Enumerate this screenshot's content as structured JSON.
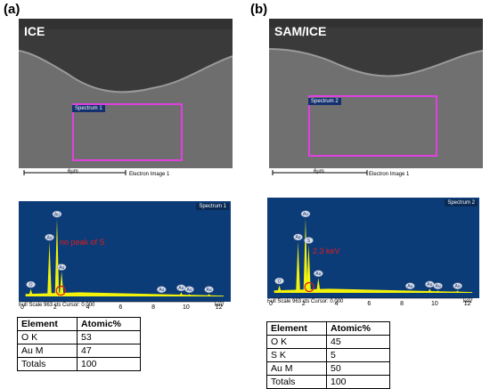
{
  "panels": [
    {
      "letter": "(a)",
      "sem_label": "ICE",
      "roi_label": "Spectrum 1",
      "scale_text": "6µm",
      "image_label": "Electron Image 1",
      "eds": {
        "spectrum_label": "Spectrum 1",
        "footer": "Full Scale 963 cts Cursor: 0.000",
        "x_unit": "keV",
        "ticks": [
          "0",
          "2",
          "4",
          "6",
          "8",
          "10",
          "12"
        ],
        "annotation": "no peak of S",
        "peaks": [
          {
            "label": "O",
            "x": 0.52,
            "y": 0.09
          },
          {
            "label": "Au",
            "x": 1.66,
            "y": 0.66
          },
          {
            "label": "Au",
            "x": 2.12,
            "y": 0.94
          },
          {
            "label": "Au",
            "x": 2.4,
            "y": 0.3
          },
          {
            "label": "Au",
            "x": 8.5,
            "y": 0.03
          },
          {
            "label": "Au",
            "x": 9.7,
            "y": 0.05
          },
          {
            "label": "Au",
            "x": 10.2,
            "y": 0.03
          },
          {
            "label": "Au",
            "x": 11.4,
            "y": 0.03
          }
        ]
      },
      "table": {
        "headers": [
          "Element",
          "Atomic%"
        ],
        "rows": [
          [
            "O K",
            "53"
          ],
          [
            "Au M",
            "47"
          ],
          [
            "Totals",
            "100"
          ]
        ]
      }
    },
    {
      "letter": "(b)",
      "sem_label": "SAM/ICE",
      "roi_label": "Spectrum 2",
      "scale_text": "6µm",
      "image_label": "Electron Image 1",
      "eds": {
        "spectrum_label": "Spectrum 2",
        "footer": "Full Scale 963 cts Cursor: 0.000",
        "x_unit": "keV",
        "ticks": [
          "0",
          "2",
          "4",
          "6",
          "8",
          "10",
          "12"
        ],
        "annotation": "2.3 keV",
        "peaks": [
          {
            "label": "O",
            "x": 0.52,
            "y": 0.09
          },
          {
            "label": "Au",
            "x": 1.66,
            "y": 0.62
          },
          {
            "label": "Au",
            "x": 2.12,
            "y": 0.9
          },
          {
            "label": "S",
            "x": 2.31,
            "y": 0.58
          },
          {
            "label": "Au",
            "x": 2.9,
            "y": 0.18
          },
          {
            "label": "Au",
            "x": 8.5,
            "y": 0.03
          },
          {
            "label": "Au",
            "x": 9.7,
            "y": 0.05
          },
          {
            "label": "Au",
            "x": 10.2,
            "y": 0.03
          },
          {
            "label": "Au",
            "x": 11.4,
            "y": 0.03
          }
        ]
      },
      "table": {
        "headers": [
          "Element",
          "Atomic%"
        ],
        "rows": [
          [
            "O K",
            "45"
          ],
          [
            "S K",
            "5"
          ],
          [
            "Au M",
            "50"
          ],
          [
            "Totals",
            "100"
          ]
        ]
      }
    }
  ],
  "colors": {
    "spectrum_fill": "#f2f20a",
    "eds_bg": "#0c3c78",
    "roi": "#e040e0",
    "annotation": "#e01b1b"
  }
}
